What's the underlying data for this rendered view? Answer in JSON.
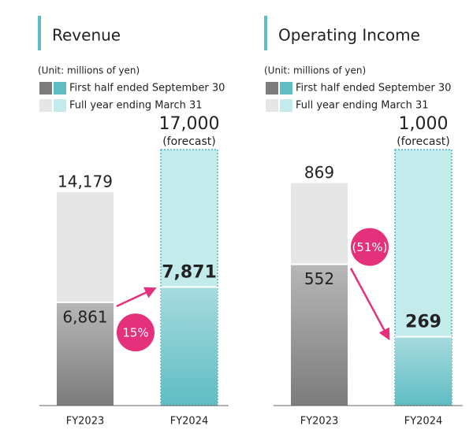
{
  "chart_data": [
    {
      "type": "bar",
      "title": "Revenue",
      "unit": "(Unit: millions of yen)",
      "categories": [
        "FY2023",
        "FY2024"
      ],
      "series": [
        {
          "name": "First half ended September 30",
          "colors": [
            "#7c7c7c",
            "#5fbdc4"
          ],
          "values": [
            6861,
            7871
          ],
          "value_labels": [
            "6,861",
            "7,871"
          ]
        },
        {
          "name": "Full year ending March 31",
          "colors": [
            "#e6e6e6",
            "#c3ebeb"
          ],
          "values": [
            14179,
            17000
          ],
          "value_labels": [
            "14,179",
            "17,000"
          ]
        }
      ],
      "annotation": "(forecast)",
      "change": {
        "value": 15,
        "label": "15%"
      }
    },
    {
      "type": "bar",
      "title": "Operating Income",
      "unit": "(Unit: millions of yen)",
      "categories": [
        "FY2023",
        "FY2024"
      ],
      "series": [
        {
          "name": "First half ended September 30",
          "colors": [
            "#7c7c7c",
            "#5fbdc4"
          ],
          "values": [
            552,
            269
          ],
          "value_labels": [
            "552",
            "269"
          ]
        },
        {
          "name": "Full year ending March 31",
          "colors": [
            "#e6e6e6",
            "#c3ebeb"
          ],
          "values": [
            869,
            1000
          ],
          "value_labels": [
            "869",
            "1,000"
          ]
        }
      ],
      "annotation": "(forecast)",
      "change": {
        "value": -51,
        "label": "(51%)"
      }
    }
  ]
}
